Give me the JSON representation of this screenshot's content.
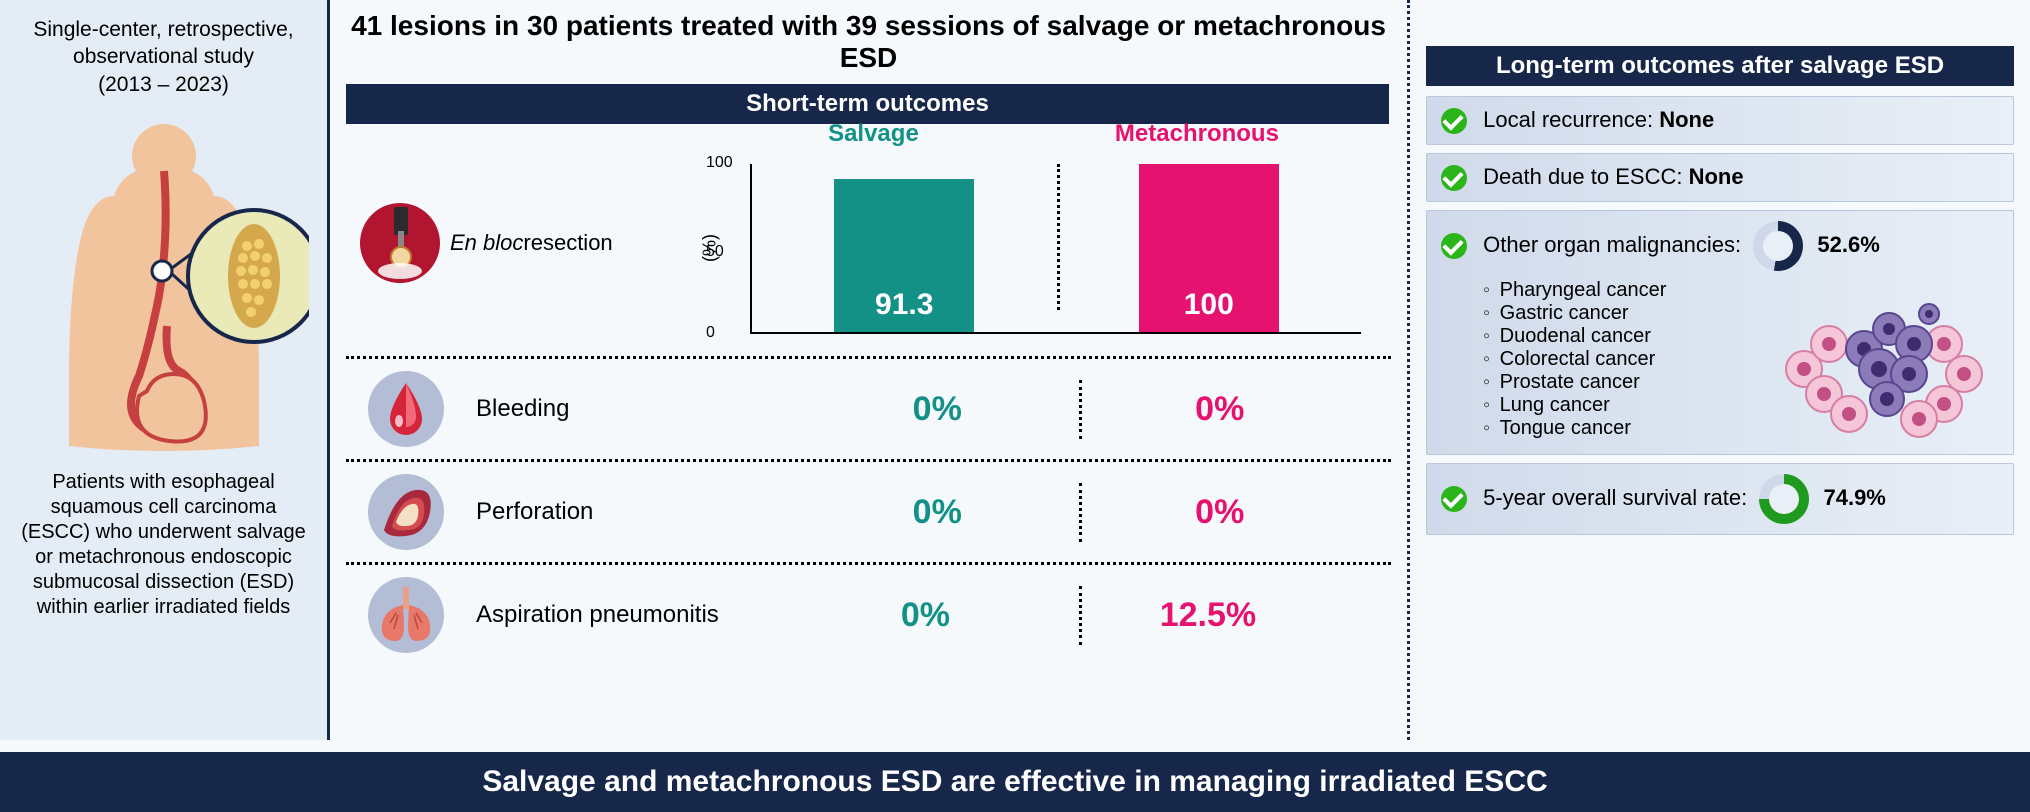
{
  "colors": {
    "navy": "#17274a",
    "teal": "#139187",
    "pink": "#e6126f",
    "leftbg": "#e4ecf5",
    "ltbg_from": "#d0daea",
    "ltbg_to": "#e8eff7",
    "green": "#2bb51a"
  },
  "left": {
    "study_type_line1": "Single-center, retrospective,",
    "study_type_line2": "observational study",
    "study_type_line3": "(2013 – 2023)",
    "description": "Patients with esophageal squamous cell carcinoma (ESCC) who underwent salvage or metachronous endoscopic submucosal dissection (ESD) within earlier irradiated fields"
  },
  "title": "41 lesions in 30 patients treated with 39 sessions of salvage or metachronous ESD",
  "short_term": {
    "header": "Short-term outcomes",
    "col_salvage": "Salvage",
    "col_meta": "Metachronous",
    "chart": {
      "type": "bar",
      "label_italic": "En bloc",
      "label_rest": " resection",
      "y_axis_label": "(%)",
      "ylim": [
        0,
        100
      ],
      "yticks": [
        0,
        50,
        100
      ],
      "bars": [
        {
          "name": "Salvage",
          "value": 91.3,
          "color": "#139187",
          "label": "91.3"
        },
        {
          "name": "Metachronous",
          "value": 100,
          "color": "#e6126f",
          "label": "100"
        }
      ]
    },
    "rows": [
      {
        "icon": "bleeding",
        "label": "Bleeding",
        "salvage": "0%",
        "meta": "0%"
      },
      {
        "icon": "perforation",
        "label": "Perforation",
        "salvage": "0%",
        "meta": "0%"
      },
      {
        "icon": "aspiration",
        "label": "Aspiration pneumonitis",
        "salvage": "0%",
        "meta": "12.5%"
      }
    ]
  },
  "long_term": {
    "header": "Long-term outcomes after salvage ESD",
    "items": [
      {
        "text": "Local recurrence: ",
        "value": "None"
      },
      {
        "text": "Death due to ESCC: ",
        "value": "None"
      }
    ],
    "malignancies": {
      "text": "Other organ malignancies:",
      "percent": "52.6%",
      "donut_fill": 52.6,
      "donut_color": "#17274a",
      "donut_track": "#cfd8e8",
      "list": [
        "Pharyngeal cancer",
        "Gastric cancer",
        "Duodenal cancer",
        "Colorectal cancer",
        "Prostate cancer",
        "Lung cancer",
        "Tongue cancer"
      ]
    },
    "survival": {
      "text": "5-year overall survival rate:",
      "percent": "74.9%",
      "donut_fill": 74.9,
      "donut_color": "#1e9b1e",
      "donut_track": "#cfd8e8"
    }
  },
  "bottom": "Salvage and metachronous ESD are effective in managing irradiated ESCC"
}
